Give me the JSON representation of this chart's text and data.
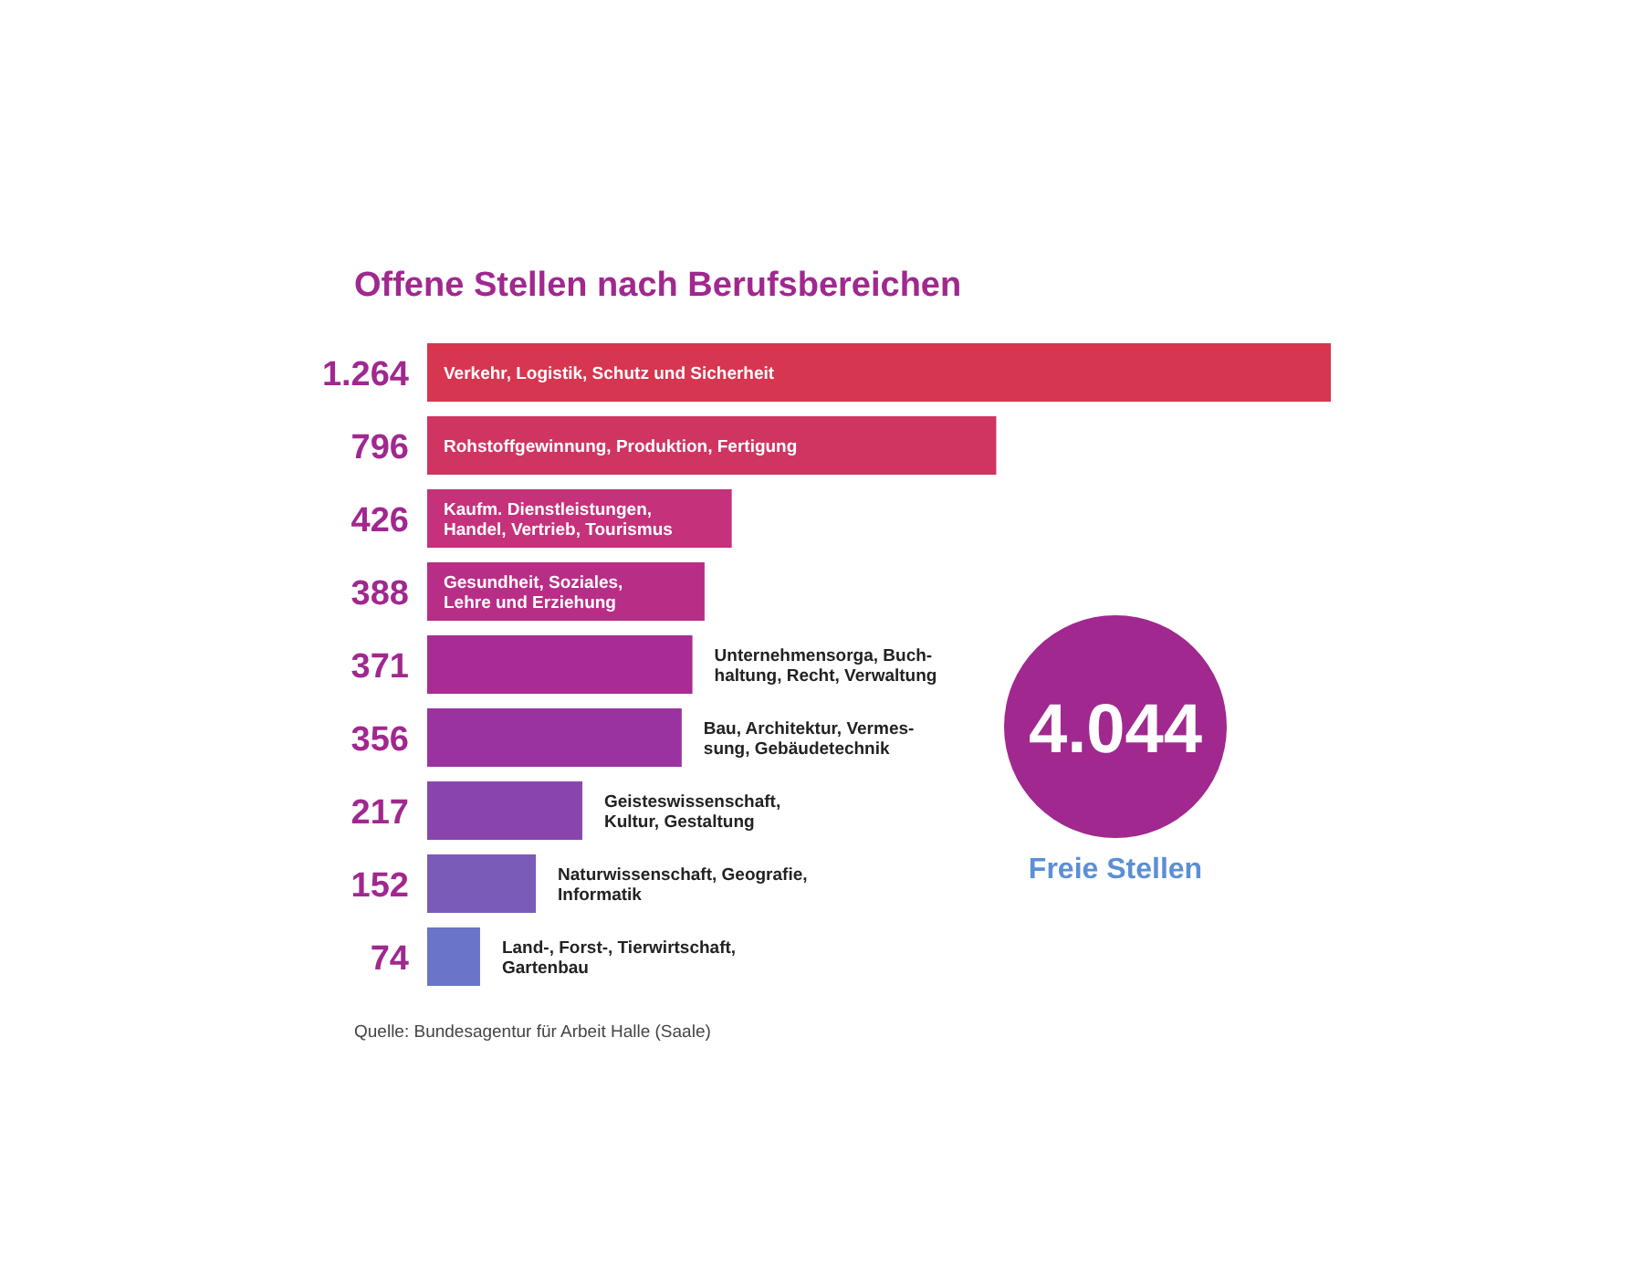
{
  "chart_data": {
    "type": "bar",
    "orientation": "horizontal",
    "title": "Offene Stellen nach Berufsbereichen",
    "categories": [
      "Verkehr, Logistik, Schutz und Sicherheit",
      "Rohstoffgewinnung, Produktion, Fertigung",
      "Kaufm. Dienstleistungen,\nHandel, Vertrieb, Tourismus",
      "Gesundheit, Soziales,\nLehre und Erziehung",
      "Unternehmensorga, Buch-\nhaltung, Recht, Verwaltung",
      "Bau, Architektur, Vermes-\nsung, Gebäudetechnik",
      "Geisteswissenschaft,\nKultur, Gestaltung",
      "Naturwissenschaft, Geografie,\nInformatik",
      "Land-, Forst-, Tierwirtschaft,\nGartenbau"
    ],
    "values": [
      1264,
      796,
      426,
      388,
      371,
      356,
      217,
      152,
      74
    ],
    "value_labels": [
      "1.264",
      "796",
      "426",
      "388",
      "371",
      "356",
      "217",
      "152",
      "74"
    ],
    "colors": [
      "#d6364f",
      "#d03562",
      "#c5317a",
      "#b82d86",
      "#a82c94",
      "#9a33a0",
      "#8a45ac",
      "#7a5bb8",
      "#6a74c8"
    ],
    "annotations": [
      "4.044",
      "Freie Stellen",
      "Quelle: Bundesagentur für Arbeit Halle (Saale)"
    ]
  }
}
